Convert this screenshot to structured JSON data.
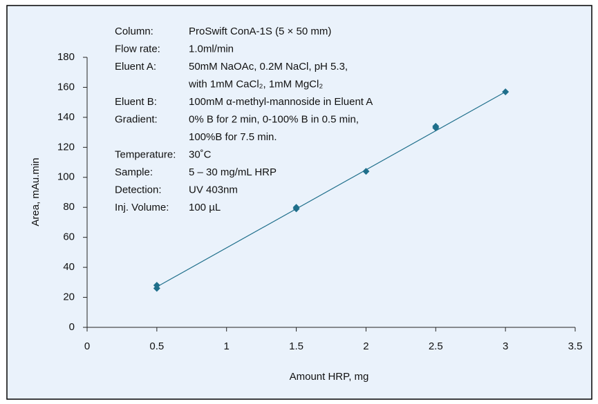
{
  "chart_data": {
    "type": "scatter",
    "xlabel": "Amount HRP, mg",
    "ylabel": "Area, mAu.min",
    "x": [
      0.5,
      0.5,
      1.5,
      1.5,
      2,
      2.5,
      2.5,
      3
    ],
    "values": [
      28,
      26,
      80,
      79,
      104,
      134,
      133,
      157
    ],
    "color": "#1f6f8b",
    "fit_line": {
      "x": [
        0.5,
        3
      ],
      "y": [
        27,
        157
      ]
    },
    "xlim": [
      0,
      3.5
    ],
    "xticks": [
      0,
      0.5,
      1,
      1.5,
      2,
      2.5,
      3,
      3.5
    ],
    "ylim": [
      0,
      180
    ],
    "yticks": [
      0,
      20,
      40,
      60,
      80,
      100,
      120,
      140,
      160,
      180
    ],
    "annotations": [
      {
        "label": "Column:",
        "lines": [
          "ProSwift ConA-1S (5 × 50 mm)"
        ]
      },
      {
        "label": "Flow rate:",
        "lines": [
          "1.0ml/min"
        ]
      },
      {
        "label": "Eluent A:",
        "lines": [
          "50mM NaOAc, 0.2M NaCl, pH 5.3,",
          "with 1mM CaCl₂, 1mM MgCl₂"
        ]
      },
      {
        "label": "Eluent B:",
        "lines": [
          "100mM α-methyl-mannoside in Eluent A"
        ]
      },
      {
        "label": "Gradient:",
        "lines": [
          "0% B for 2 min, 0-100% B in 0.5 min,",
          "100%B for 7.5 min."
        ]
      },
      {
        "label": "Temperature:",
        "lines": [
          "30˚C"
        ]
      },
      {
        "label": "Sample:",
        "lines": [
          "5 – 30 mg/mL HRP"
        ]
      },
      {
        "label": "Detection:",
        "lines": [
          "UV 403nm"
        ]
      },
      {
        "label": "Inj. Volume:",
        "lines": [
          "100 µL"
        ]
      }
    ]
  }
}
